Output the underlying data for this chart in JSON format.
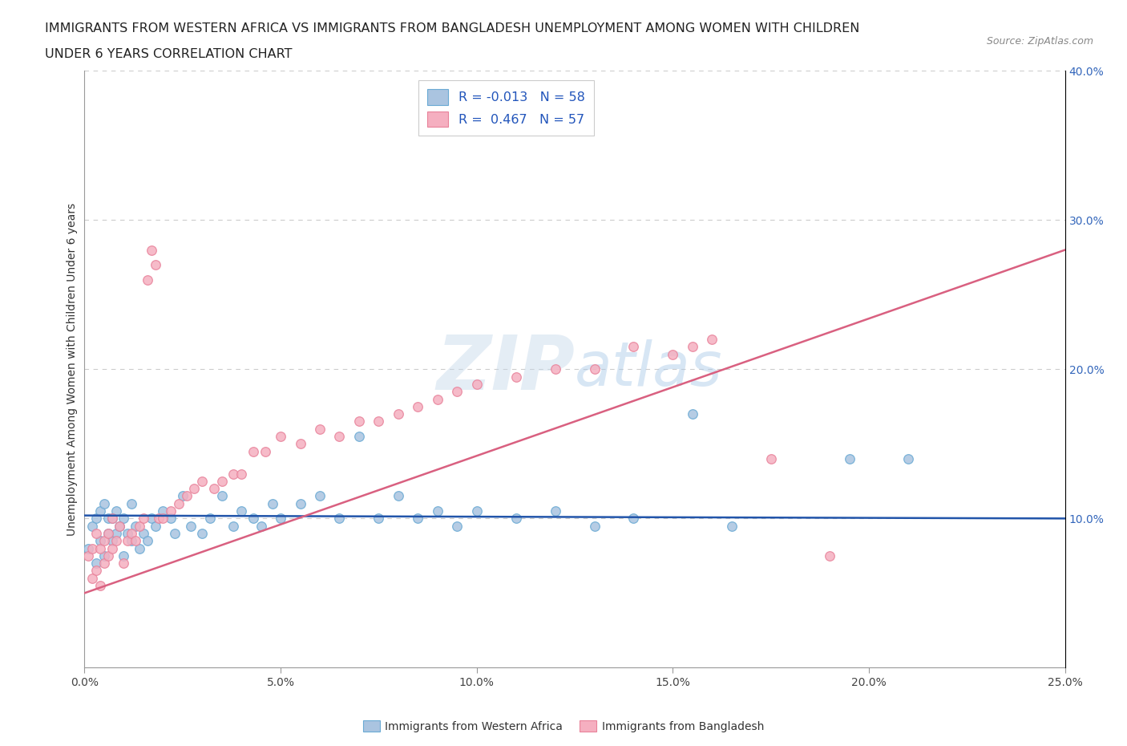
{
  "title_line1": "IMMIGRANTS FROM WESTERN AFRICA VS IMMIGRANTS FROM BANGLADESH UNEMPLOYMENT AMONG WOMEN WITH CHILDREN",
  "title_line2": "UNDER 6 YEARS CORRELATION CHART",
  "source_text": "Source: ZipAtlas.com",
  "ylabel": "Unemployment Among Women with Children Under 6 years",
  "xmin": 0.0,
  "xmax": 0.25,
  "ymin": 0.0,
  "ymax": 0.4,
  "xticks": [
    0.0,
    0.05,
    0.1,
    0.15,
    0.2,
    0.25
  ],
  "yticks_right": [
    0.1,
    0.2,
    0.3,
    0.4
  ],
  "legend_r1": "R = -0.013",
  "legend_n1": "N = 58",
  "legend_r2": "R =  0.467",
  "legend_n2": "N = 57",
  "series1_color": "#aac4e0",
  "series1_edge": "#6aaad4",
  "series2_color": "#f5afc0",
  "series2_edge": "#e8829a",
  "line1_color": "#2255aa",
  "line2_color": "#d96080",
  "watermark_color": "#c5d8ea",
  "watermark_alpha": 0.45,
  "legend_label1": "Immigrants from Western Africa",
  "legend_label2": "Immigrants from Bangladesh",
  "wa_x": [
    0.001,
    0.002,
    0.003,
    0.003,
    0.004,
    0.004,
    0.005,
    0.005,
    0.006,
    0.006,
    0.007,
    0.007,
    0.008,
    0.008,
    0.009,
    0.01,
    0.01,
    0.011,
    0.012,
    0.012,
    0.013,
    0.014,
    0.015,
    0.016,
    0.017,
    0.018,
    0.02,
    0.022,
    0.023,
    0.025,
    0.027,
    0.03,
    0.032,
    0.035,
    0.038,
    0.04,
    0.043,
    0.045,
    0.048,
    0.05,
    0.055,
    0.06,
    0.065,
    0.07,
    0.075,
    0.08,
    0.085,
    0.09,
    0.095,
    0.1,
    0.11,
    0.12,
    0.13,
    0.14,
    0.155,
    0.165,
    0.195,
    0.21
  ],
  "wa_y": [
    0.08,
    0.095,
    0.1,
    0.07,
    0.085,
    0.105,
    0.075,
    0.11,
    0.09,
    0.1,
    0.085,
    0.1,
    0.09,
    0.105,
    0.095,
    0.1,
    0.075,
    0.09,
    0.085,
    0.11,
    0.095,
    0.08,
    0.09,
    0.085,
    0.1,
    0.095,
    0.105,
    0.1,
    0.09,
    0.115,
    0.095,
    0.09,
    0.1,
    0.115,
    0.095,
    0.105,
    0.1,
    0.095,
    0.11,
    0.1,
    0.11,
    0.115,
    0.1,
    0.155,
    0.1,
    0.115,
    0.1,
    0.105,
    0.095,
    0.105,
    0.1,
    0.105,
    0.095,
    0.1,
    0.17,
    0.095,
    0.14,
    0.14
  ],
  "bd_x": [
    0.001,
    0.002,
    0.002,
    0.003,
    0.003,
    0.004,
    0.004,
    0.005,
    0.005,
    0.006,
    0.006,
    0.007,
    0.007,
    0.008,
    0.009,
    0.01,
    0.011,
    0.012,
    0.013,
    0.014,
    0.015,
    0.016,
    0.017,
    0.018,
    0.019,
    0.02,
    0.022,
    0.024,
    0.026,
    0.028,
    0.03,
    0.033,
    0.035,
    0.038,
    0.04,
    0.043,
    0.046,
    0.05,
    0.055,
    0.06,
    0.065,
    0.07,
    0.075,
    0.08,
    0.085,
    0.09,
    0.095,
    0.1,
    0.11,
    0.12,
    0.13,
    0.14,
    0.15,
    0.155,
    0.16,
    0.175,
    0.19
  ],
  "bd_y": [
    0.075,
    0.08,
    0.06,
    0.065,
    0.09,
    0.055,
    0.08,
    0.07,
    0.085,
    0.075,
    0.09,
    0.08,
    0.1,
    0.085,
    0.095,
    0.07,
    0.085,
    0.09,
    0.085,
    0.095,
    0.1,
    0.26,
    0.28,
    0.27,
    0.1,
    0.1,
    0.105,
    0.11,
    0.115,
    0.12,
    0.125,
    0.12,
    0.125,
    0.13,
    0.13,
    0.145,
    0.145,
    0.155,
    0.15,
    0.16,
    0.155,
    0.165,
    0.165,
    0.17,
    0.175,
    0.18,
    0.185,
    0.19,
    0.195,
    0.2,
    0.2,
    0.215,
    0.21,
    0.215,
    0.22,
    0.14,
    0.075
  ],
  "blue_line_x": [
    0.0,
    0.25
  ],
  "blue_line_y": [
    0.102,
    0.1
  ],
  "pink_line_x": [
    0.0,
    0.25
  ],
  "pink_line_y": [
    0.05,
    0.28
  ]
}
